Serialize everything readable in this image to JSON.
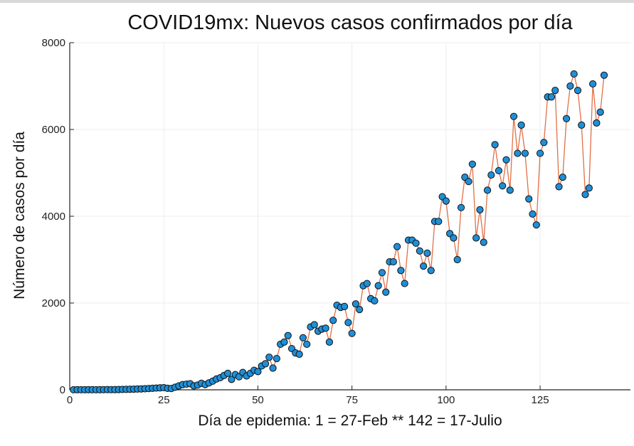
{
  "chart_data": {
    "type": "scatter",
    "title": "COVID19mx: Nuevos casos confirmados por día",
    "xlabel": "Día de epidemia: 1 = 27-Feb ** 142 = 17-Julio",
    "ylabel": "Número de casos por día",
    "xlim": [
      0,
      149
    ],
    "ylim": [
      0,
      8000
    ],
    "xticks": [
      0,
      25,
      50,
      75,
      100,
      125
    ],
    "yticks": [
      0,
      2000,
      4000,
      6000,
      8000
    ],
    "grid": true,
    "legend": "none",
    "line_color": "#e26f46",
    "marker_color": "#1f8fd8",
    "marker_edge": "#111111",
    "series": [
      {
        "x": [
          1,
          2,
          3,
          4,
          5,
          6,
          7,
          8,
          9,
          10,
          11,
          12,
          13,
          14,
          15,
          16,
          17,
          18,
          19,
          20,
          21,
          22,
          23,
          24,
          25,
          26,
          27,
          28,
          29,
          30,
          31,
          32,
          33,
          34,
          35,
          36,
          37,
          38,
          39,
          40,
          41,
          42,
          43,
          44,
          45,
          46,
          47,
          48,
          49,
          50,
          51,
          52,
          53,
          54,
          55,
          56,
          57,
          58,
          59,
          60,
          61,
          62,
          63,
          64,
          65,
          66,
          67,
          68,
          69,
          70,
          71,
          72,
          73,
          74,
          75,
          76,
          77,
          78,
          79,
          80,
          81,
          82,
          83,
          84,
          85,
          86,
          87,
          88,
          89,
          90,
          91,
          92,
          93,
          94,
          95,
          96,
          97,
          98,
          99,
          100,
          101,
          102,
          103,
          104,
          105,
          106,
          107,
          108,
          109,
          110,
          111,
          112,
          113,
          114,
          115,
          116,
          117,
          118,
          119,
          120,
          121,
          122,
          123,
          124,
          125,
          126,
          127,
          128,
          129,
          130,
          131,
          132,
          133,
          134,
          135,
          136,
          137,
          138,
          139,
          140,
          141,
          142
        ],
        "y": [
          1,
          2,
          1,
          1,
          2,
          3,
          1,
          2,
          3,
          5,
          3,
          4,
          6,
          8,
          10,
          12,
          15,
          18,
          20,
          25,
          30,
          35,
          40,
          45,
          50,
          35,
          30,
          60,
          90,
          120,
          130,
          140,
          90,
          110,
          150,
          120,
          160,
          200,
          250,
          280,
          330,
          380,
          240,
          350,
          300,
          400,
          320,
          380,
          450,
          420,
          550,
          600,
          750,
          500,
          720,
          1050,
          1100,
          1250,
          950,
          850,
          820,
          1200,
          1050,
          1450,
          1500,
          1350,
          1400,
          1420,
          1100,
          1600,
          1950,
          1900,
          1920,
          1550,
          1300,
          1980,
          1850,
          2400,
          2450,
          2100,
          2050,
          2400,
          2700,
          2250,
          2950,
          2950,
          3300,
          2750,
          2450,
          3450,
          3450,
          3380,
          3200,
          2850,
          3150,
          2750,
          3880,
          3880,
          4450,
          4350,
          3600,
          3500,
          3000,
          4200,
          4900,
          4800,
          5200,
          3500,
          4150,
          3400,
          4600,
          4950,
          5650,
          5050,
          4700,
          5300,
          4600,
          6300,
          5450,
          6100,
          5450,
          4400,
          4050,
          3800,
          5450,
          5700,
          6750,
          6750,
          6900,
          4680,
          4900,
          6250,
          7000,
          7280,
          6900,
          6100,
          4500,
          4650,
          7050,
          6150,
          6400,
          7250
        ]
      }
    ]
  }
}
